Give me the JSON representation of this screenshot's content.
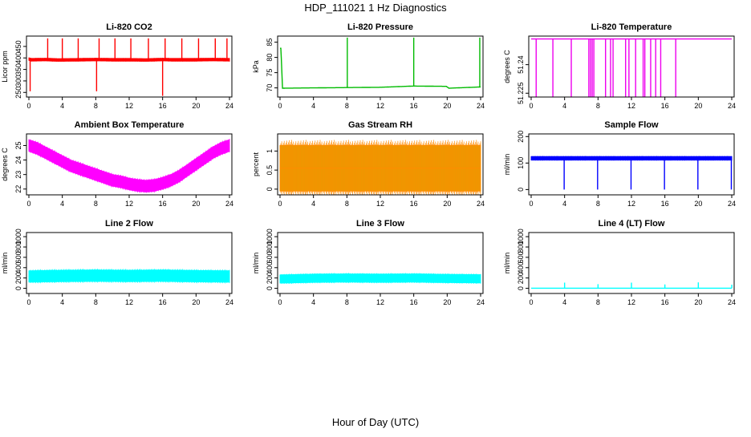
{
  "figure": {
    "title": "HDP_111021  1 Hz Diagnostics",
    "xlabel": "Hour of Day (UTC)"
  },
  "chart_data": [
    {
      "id": "co2",
      "type": "line",
      "title": "Li-820 CO2",
      "ylabel": "Licor ppm",
      "color": "#ff0000",
      "style": "band",
      "xlim": [
        0,
        24
      ],
      "xticks": [
        0,
        4,
        8,
        12,
        16,
        20,
        24
      ],
      "ylim": [
        230,
        495
      ],
      "yticks": [
        250,
        300,
        350,
        400,
        450
      ],
      "x": [
        0,
        0.3,
        2,
        3.5,
        6,
        8,
        10,
        12,
        14,
        16,
        17,
        20,
        22,
        24
      ],
      "values": [
        395,
        392,
        393,
        391,
        392,
        393,
        392,
        392,
        391,
        393,
        392,
        392,
        393,
        392
      ],
      "band": 6,
      "spikes": [
        {
          "x": 0.15,
          "value": 255
        },
        {
          "x": 2.25,
          "value": 485
        },
        {
          "x": 4.0,
          "value": 485
        },
        {
          "x": 5.9,
          "value": 485
        },
        {
          "x": 8.1,
          "value": 255
        },
        {
          "x": 8.4,
          "value": 485
        },
        {
          "x": 10.3,
          "value": 485
        },
        {
          "x": 12.2,
          "value": 485
        },
        {
          "x": 14.3,
          "value": 485
        },
        {
          "x": 16.3,
          "value": 485
        },
        {
          "x": 16.0,
          "value": 235
        },
        {
          "x": 18.3,
          "value": 485
        },
        {
          "x": 20.3,
          "value": 485
        },
        {
          "x": 22.3,
          "value": 485
        },
        {
          "x": 23.7,
          "value": 485
        }
      ]
    },
    {
      "id": "pressure",
      "type": "line",
      "title": "Li-820 Pressure",
      "ylabel": "kPa",
      "color": "#00bb00",
      "style": "line",
      "xlim": [
        0,
        24
      ],
      "xticks": [
        0,
        4,
        8,
        12,
        16,
        20,
        24
      ],
      "ylim": [
        67,
        87
      ],
      "yticks": [
        70,
        75,
        80,
        85
      ],
      "x": [
        0.1,
        0.3,
        4,
        8,
        12,
        16,
        19.9,
        20.2,
        24
      ],
      "values": [
        83,
        69.9,
        70.0,
        70.1,
        70.2,
        70.6,
        70.5,
        69.9,
        70.3
      ],
      "band": 0.3,
      "spikes": [
        {
          "x": 0.05,
          "value": 83
        },
        {
          "x": 8.05,
          "value": 86.5
        },
        {
          "x": 16.0,
          "value": 86.5
        },
        {
          "x": 23.9,
          "value": 86.5
        }
      ]
    },
    {
      "id": "li820temp",
      "type": "line",
      "title": "Li-820 Temperature",
      "ylabel": "degrees C",
      "color": "#ee00ee",
      "style": "line",
      "xlim": [
        0,
        24
      ],
      "xticks": [
        0,
        4,
        8,
        12,
        16,
        20,
        24
      ],
      "ylim": [
        51.223,
        51.255
      ],
      "yticks": [
        51.225,
        51.24
      ],
      "x": [
        0,
        24
      ],
      "values": [
        51.2535,
        51.2535
      ],
      "band": 0,
      "spikes": [
        {
          "x": 0.6,
          "value": 51.223
        },
        {
          "x": 2.6,
          "value": 51.223
        },
        {
          "x": 4.8,
          "value": 51.223
        },
        {
          "x": 6.9,
          "value": 51.223
        },
        {
          "x": 7.1,
          "value": 51.223
        },
        {
          "x": 7.3,
          "value": 51.223
        },
        {
          "x": 7.5,
          "value": 51.223
        },
        {
          "x": 8.9,
          "value": 51.223
        },
        {
          "x": 9.5,
          "value": 51.223
        },
        {
          "x": 9.8,
          "value": 51.223
        },
        {
          "x": 11.3,
          "value": 51.223
        },
        {
          "x": 11.7,
          "value": 51.223
        },
        {
          "x": 12.5,
          "value": 51.223
        },
        {
          "x": 13.4,
          "value": 51.223
        },
        {
          "x": 13.6,
          "value": 51.223
        },
        {
          "x": 14.3,
          "value": 51.223
        },
        {
          "x": 14.9,
          "value": 51.223
        },
        {
          "x": 15.5,
          "value": 51.223
        },
        {
          "x": 17.3,
          "value": 51.223
        }
      ]
    },
    {
      "id": "ambtemp",
      "type": "line",
      "title": "Ambient Box Temperature",
      "ylabel": "degrees C",
      "color": "#ff00ff",
      "style": "band",
      "xlim": [
        0,
        24
      ],
      "xticks": [
        0,
        4,
        8,
        12,
        16,
        20,
        24
      ],
      "ylim": [
        21.6,
        25.8
      ],
      "yticks": [
        22.0,
        23.0,
        24.0,
        25.0
      ],
      "x": [
        0,
        1,
        2,
        3,
        4,
        5,
        6,
        7,
        8,
        9,
        10,
        11,
        12,
        13,
        14,
        15,
        16,
        17,
        18,
        19,
        20,
        21,
        22,
        23,
        24
      ],
      "values": [
        25.0,
        24.8,
        24.5,
        24.2,
        23.9,
        23.6,
        23.4,
        23.2,
        23.0,
        22.8,
        22.6,
        22.5,
        22.35,
        22.25,
        22.2,
        22.25,
        22.4,
        22.6,
        22.9,
        23.3,
        23.7,
        24.1,
        24.5,
        24.8,
        25.0
      ],
      "band": 0.4,
      "spikes": []
    },
    {
      "id": "rh",
      "type": "line",
      "title": "Gas Stream RH",
      "ylabel": "percent",
      "color": "#ff8c00",
      "fill": "#d4a800",
      "style": "band",
      "xlim": [
        0,
        24
      ],
      "xticks": [
        0,
        4,
        8,
        12,
        16,
        20,
        24
      ],
      "ylim": [
        -0.15,
        1.45
      ],
      "yticks": [
        0.0,
        0.5,
        1.0
      ],
      "x": [
        0,
        24
      ],
      "values": [
        0.55,
        0.55
      ],
      "band": 0.6,
      "spikes": []
    },
    {
      "id": "sampleflow",
      "type": "line",
      "title": "Sample Flow",
      "ylabel": "ml/min",
      "color": "#0000ff",
      "style": "band",
      "xlim": [
        0,
        24
      ],
      "xticks": [
        0,
        4,
        8,
        12,
        16,
        20,
        24
      ],
      "ylim": [
        -20,
        210
      ],
      "yticks": [
        0,
        100,
        200
      ],
      "x": [
        0,
        24
      ],
      "values": [
        118,
        118
      ],
      "band": 7,
      "spikes": [
        {
          "x": 3.95,
          "value": 0
        },
        {
          "x": 7.95,
          "value": 0
        },
        {
          "x": 11.95,
          "value": 0
        },
        {
          "x": 15.95,
          "value": 0
        },
        {
          "x": 19.95,
          "value": 0
        },
        {
          "x": 23.95,
          "value": 0
        }
      ]
    },
    {
      "id": "line2",
      "type": "line",
      "title": "Line 2 Flow",
      "ylabel": "ml/min",
      "color": "#00ffff",
      "style": "band",
      "xlim": [
        0,
        24
      ],
      "xticks": [
        0,
        4,
        8,
        12,
        16,
        20,
        24
      ],
      "ylim": [
        -100,
        1080
      ],
      "yticks": [
        0,
        200,
        400,
        600,
        800,
        1000
      ],
      "x": [
        0,
        4,
        8,
        12,
        16,
        20,
        24
      ],
      "values": [
        230,
        240,
        245,
        240,
        245,
        235,
        230
      ],
      "band": 110,
      "spikes": []
    },
    {
      "id": "line3",
      "type": "line",
      "title": "Line 3 Flow",
      "ylabel": "ml/min",
      "color": "#00ffff",
      "style": "band",
      "xlim": [
        0,
        24
      ],
      "xticks": [
        0,
        4,
        8,
        12,
        16,
        20,
        24
      ],
      "ylim": [
        -100,
        1080
      ],
      "yticks": [
        0,
        200,
        400,
        600,
        800,
        1000
      ],
      "x": [
        0,
        4,
        8,
        12,
        16,
        20,
        24
      ],
      "values": [
        180,
        195,
        200,
        195,
        200,
        190,
        185
      ],
      "band": 80,
      "spikes": []
    },
    {
      "id": "line4",
      "type": "line",
      "title": "Line 4 (LT) Flow",
      "ylabel": "ml/min",
      "color": "#00ffff",
      "style": "line",
      "xlim": [
        0,
        24
      ],
      "xticks": [
        0,
        4,
        8,
        12,
        16,
        20,
        24
      ],
      "ylim": [
        -100,
        1080
      ],
      "yticks": [
        0,
        200,
        400,
        600,
        800,
        1000
      ],
      "x": [
        0,
        24
      ],
      "values": [
        2,
        2
      ],
      "band": 0,
      "spikes": [
        {
          "x": 4.0,
          "value": 110
        },
        {
          "x": 8.0,
          "value": 80
        },
        {
          "x": 12.0,
          "value": 110
        },
        {
          "x": 16.0,
          "value": 75
        },
        {
          "x": 20.0,
          "value": 115
        },
        {
          "x": 24.0,
          "value": 70
        }
      ]
    }
  ]
}
